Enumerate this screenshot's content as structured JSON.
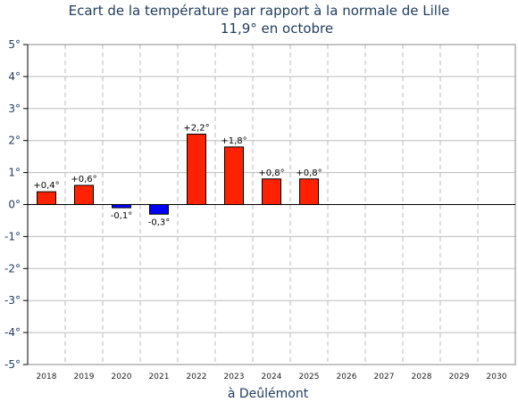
{
  "chart_data": {
    "type": "bar",
    "title": "Ecart de la température par rapport à la normale de Lille",
    "subtitle": "11,9° en octobre",
    "xlabel": "à Deûlémont",
    "ylabel": "",
    "categories": [
      "2018",
      "2019",
      "2020",
      "2021",
      "2022",
      "2023",
      "2024",
      "2025",
      "2026",
      "2027",
      "2028",
      "2029",
      "2030"
    ],
    "values": [
      0.4,
      0.6,
      -0.1,
      -0.3,
      2.2,
      1.8,
      0.8,
      0.8,
      null,
      null,
      null,
      null,
      null
    ],
    "data_labels": [
      "+0,4°",
      "+0,6°",
      "-0,1°",
      "-0,3°",
      "+2,2°",
      "+1,8°",
      "+0,8°",
      "+0,8°",
      "",
      "",
      "",
      "",
      ""
    ],
    "ylim": [
      -5,
      5
    ],
    "yticks": [
      5,
      4,
      3,
      2,
      1,
      0,
      -1,
      -2,
      -3,
      -4,
      -5
    ],
    "ytick_labels": [
      "5°",
      "4°",
      "3°",
      "2°",
      "1°",
      "0°",
      "-1°",
      "-2°",
      "-3°",
      "-4°",
      "-5°"
    ],
    "grid": true,
    "legend": "none",
    "colors": {
      "positive": "#ff2200",
      "negative": "#0000ff",
      "grid": "#bbbbbb",
      "text": "#1f3a5f"
    }
  }
}
